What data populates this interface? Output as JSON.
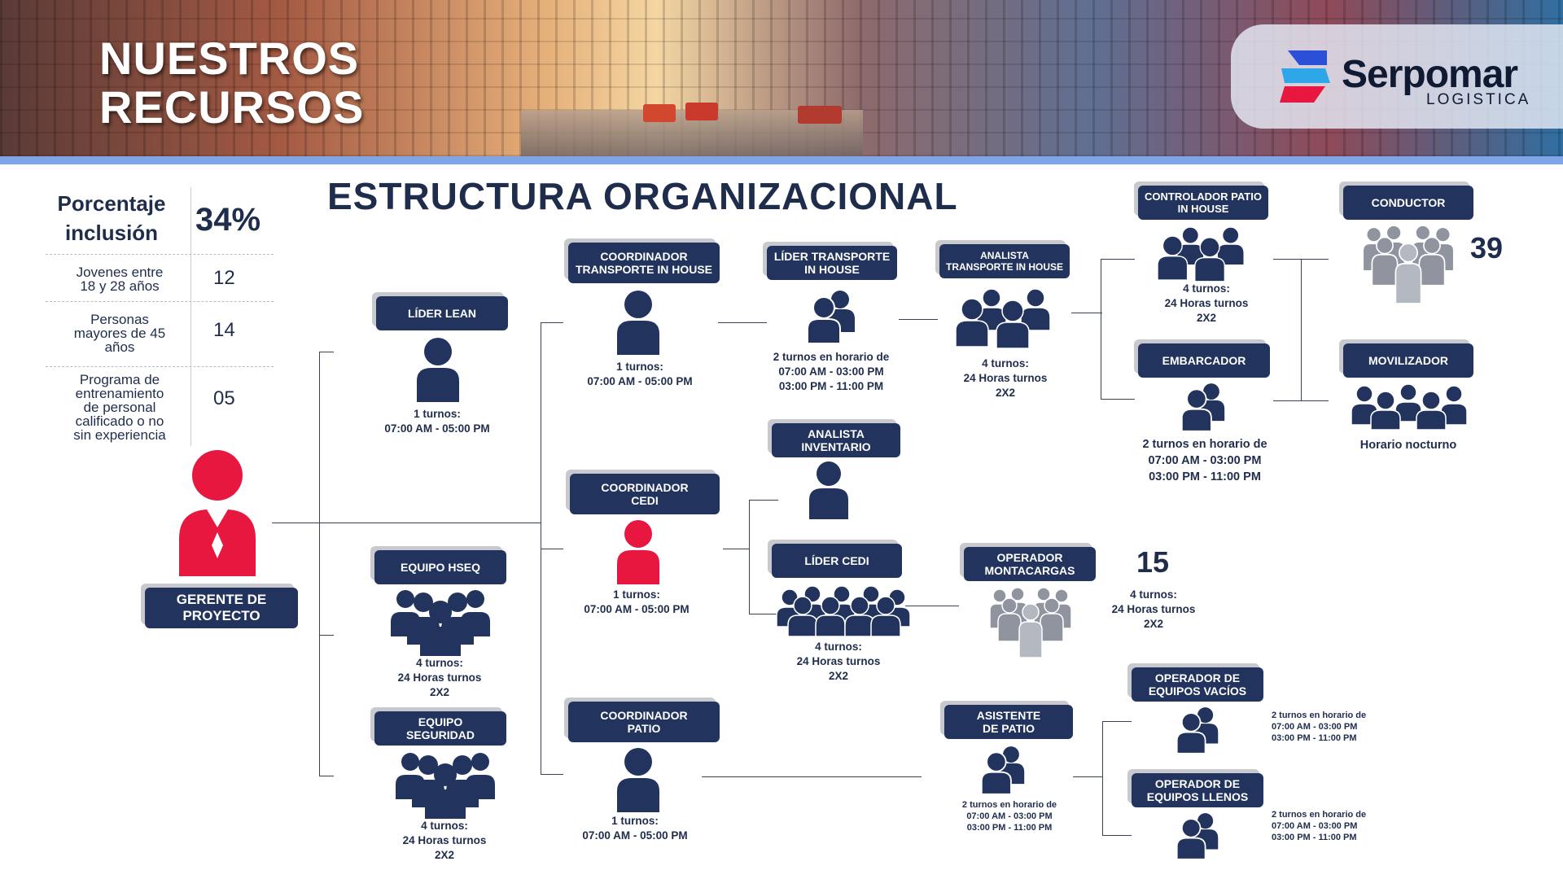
{
  "header": {
    "title_line1": "NUESTROS",
    "title_line2": "RECURSOS",
    "logo_name": "Serpomar",
    "logo_sub": "LOGISTICA"
  },
  "main_title": "ESTRUCTURA ORGANIZACIONAL",
  "stats": {
    "inclusion_label_line1": "Porcentaje",
    "inclusion_label_line2": "inclusión",
    "inclusion_value": "34%",
    "rows": [
      {
        "label_lines": [
          "Jovenes entre",
          "18 y 28 años"
        ],
        "value": "12"
      },
      {
        "label_lines": [
          "Personas",
          "mayores de 45",
          "años"
        ],
        "value": "14"
      },
      {
        "label_lines": [
          "Programa de",
          "entrenamiento",
          "de personal",
          "calificado o no",
          "sin experiencia"
        ],
        "value": "05"
      }
    ]
  },
  "manager": {
    "label_line1": "GERENTE DE",
    "label_line2": "PROYECTO"
  },
  "nodes": {
    "lider_lean": {
      "title": "LÍDER LEAN",
      "caption": [
        "1  turnos:",
        "07:00 AM - 05:00 PM"
      ]
    },
    "equipo_hseq": {
      "title": "EQUIPO HSEQ",
      "caption": [
        "4  turnos:",
        "24 Horas turnos",
        "2X2"
      ]
    },
    "equipo_seguridad": {
      "title_line1": "EQUIPO",
      "title_line2": "SEGURIDAD",
      "caption": [
        "4  turnos:",
        "24 Horas turnos",
        "2X2"
      ]
    },
    "coord_transporte": {
      "title_line1": "COORDINADOR",
      "title_line2": "TRANSPORTE IN HOUSE",
      "caption": [
        "1  turnos:",
        "07:00 AM - 05:00 PM"
      ]
    },
    "coord_cedi": {
      "title_line1": "COORDINADOR",
      "title_line2": "CEDI",
      "caption": [
        "1  turnos:",
        "07:00 AM - 05:00 PM"
      ]
    },
    "coord_patio": {
      "title_line1": "COORDINADOR",
      "title_line2": "PATIO",
      "caption": [
        "1  turnos:",
        "07:00 AM - 05:00 PM"
      ]
    },
    "lider_transporte": {
      "title_line1": "LÍDER  TRANSPORTE",
      "title_line2": "IN HOUSE",
      "caption": [
        "2 turnos en horario de",
        "07:00 AM - 03:00 PM",
        "03:00 PM  - 11:00 PM"
      ]
    },
    "analista_inventario": {
      "title_line1": "ANALISTA",
      "title_line2": "INVENTARIO"
    },
    "lider_cedi": {
      "title": "LÍDER  CEDI",
      "caption": [
        "4  turnos:",
        "24 Horas turnos",
        "2X2"
      ]
    },
    "analista_transporte": {
      "title_line1": "ANALISTA",
      "title_line2": "TRANSPORTE IN HOUSE",
      "caption": [
        "4  turnos:",
        "24 Horas turnos",
        "2X2"
      ]
    },
    "operador_montacargas": {
      "title_line1": "OPERADOR",
      "title_line2": "MONTACARGAS",
      "count": "15",
      "caption": [
        "4  turnos:",
        "24 Horas turnos",
        "2X2"
      ]
    },
    "asistente_patio": {
      "title_line1": "ASISTENTE",
      "title_line2": "DE PATIO",
      "caption": [
        "2 turnos en horario de",
        "07:00 AM - 03:00 PM",
        "03:00 PM  - 11:00 PM"
      ]
    },
    "controlador_patio": {
      "title_line1": "CONTROLADOR PATIO",
      "title_line2": "IN HOUSE",
      "caption": [
        "4  turnos:",
        "24 Horas turnos",
        "2X2"
      ]
    },
    "embarcador": {
      "title": "EMBARCADOR",
      "caption": [
        "2 turnos en horario de",
        "07:00 AM - 03:00 PM",
        "03:00 PM  - 11:00 PM"
      ]
    },
    "conductor": {
      "title": "CONDUCTOR",
      "count": "39"
    },
    "movilizador": {
      "title": "MOVILIZADOR",
      "caption": [
        "Horario nocturno"
      ]
    },
    "operador_vacios": {
      "title_line1": "OPERADOR DE",
      "title_line2": "EQUIPOS VACÍOS",
      "caption": [
        "2 turnos en horario de",
        "07:00 AM - 03:00 PM",
        "03:00 PM  - 11:00 PM"
      ]
    },
    "operador_llenos": {
      "title_line1": "OPERADOR DE",
      "title_line2": "EQUIPOS LLENOS",
      "caption": [
        "2 turnos en horario de",
        "07:00 AM - 03:00 PM",
        "03:00 PM  - 11:00 PM"
      ]
    }
  },
  "colors": {
    "navy": "#22345e",
    "accent_red": "#e8173f",
    "gray_group": "#8f949e"
  }
}
